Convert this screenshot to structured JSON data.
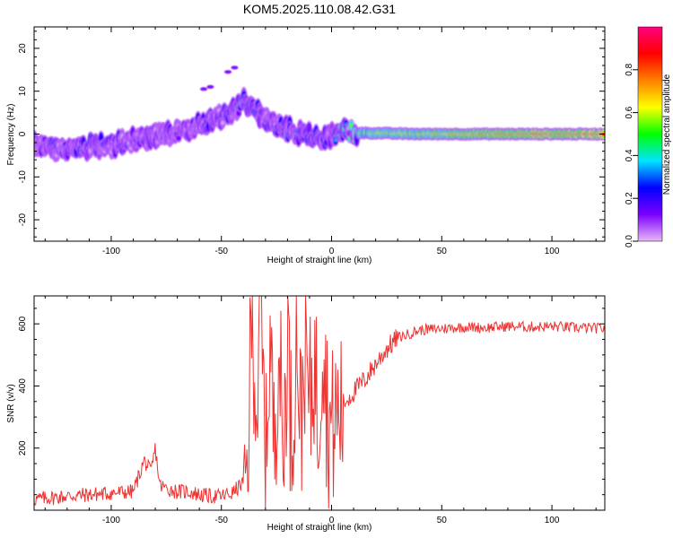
{
  "title": "KOM5.2025.110.08.42.G31",
  "chart_data": [
    {
      "type": "heatmap",
      "xlabel": "Height of straight line (km)",
      "ylabel": "Frequency (Hz)",
      "xlim": [
        -135,
        124
      ],
      "ylim": [
        -25,
        25
      ],
      "xticks": [
        -100,
        -50,
        0,
        50,
        100
      ],
      "yticks": [
        -20,
        -10,
        0,
        10,
        20
      ],
      "colorbar": {
        "label": "Normalized spectral amplitude",
        "range": [
          0,
          1
        ],
        "ticks": [
          "0.0",
          "0.2",
          "0.4",
          "0.6",
          "0.8"
        ],
        "tick_values": [
          0,
          0.2,
          0.4,
          0.6,
          0.8
        ],
        "colors": [
          "#e9b8f5",
          "#7b00ff",
          "#0000ff",
          "#00e5ff",
          "#00ff00",
          "#ffff00",
          "#ff8000",
          "#ff0000",
          "#ff0080"
        ]
      },
      "ridge": {
        "x": [
          -135,
          -120,
          -110,
          -100,
          -90,
          -80,
          -70,
          -60,
          -50,
          -45,
          -40,
          -35,
          -30,
          -25,
          -20,
          -15,
          -10,
          -5,
          0,
          5,
          10,
          20,
          30,
          40,
          50,
          60,
          70,
          80,
          90,
          100,
          110,
          124
        ],
        "frequency": [
          -2.5,
          -3.5,
          -3,
          -2.5,
          -1.5,
          -0.5,
          0.5,
          2,
          4,
          5.5,
          7.5,
          6,
          3.5,
          2,
          1,
          0,
          -0.5,
          -1,
          -0.5,
          0.5,
          0.3,
          0.2,
          0.1,
          0,
          0,
          0,
          0,
          0,
          0,
          0,
          0,
          0
        ],
        "amplitude": [
          0.25,
          0.3,
          0.3,
          0.25,
          0.22,
          0.22,
          0.22,
          0.25,
          0.3,
          0.3,
          0.35,
          0.3,
          0.3,
          0.3,
          0.3,
          0.3,
          0.3,
          0.3,
          0.35,
          0.45,
          0.55,
          0.55,
          0.6,
          0.6,
          0.65,
          0.7,
          0.72,
          0.75,
          0.78,
          0.8,
          0.82,
          0.85
        ]
      }
    },
    {
      "type": "line",
      "xlabel": "Height of straight line (km)",
      "ylabel": "SNR (v/v)",
      "xlim": [
        -135,
        124
      ],
      "ylim": [
        0,
        690
      ],
      "xticks": [
        -100,
        -50,
        0,
        50,
        100
      ],
      "yticks": [
        200,
        400,
        600
      ],
      "series": [
        {
          "color": "#ee3333",
          "x": [
            -135,
            -120,
            -100,
            -90,
            -85,
            -82,
            -80,
            -78,
            -75,
            -70,
            -65,
            -60,
            -55,
            -50,
            -45,
            -40,
            -38,
            -36,
            -34,
            -32,
            -30,
            -28,
            -26,
            -24,
            -22,
            -20,
            -18,
            -16,
            -14,
            -12,
            -10,
            -8,
            -6,
            -4,
            -2,
            0,
            5,
            10,
            15,
            20,
            25,
            30,
            40,
            50,
            60,
            70,
            80,
            90,
            100,
            110,
            124
          ],
          "y": [
            35,
            45,
            55,
            60,
            160,
            120,
            200,
            80,
            70,
            60,
            60,
            50,
            45,
            45,
            55,
            90,
            150,
            680,
            320,
            600,
            150,
            560,
            200,
            600,
            120,
            600,
            180,
            640,
            260,
            560,
            300,
            500,
            280,
            620,
            320,
            260,
            340,
            380,
            420,
            470,
            520,
            555,
            580,
            585,
            590,
            588,
            592,
            590,
            592,
            588,
            585
          ]
        }
      ]
    }
  ]
}
